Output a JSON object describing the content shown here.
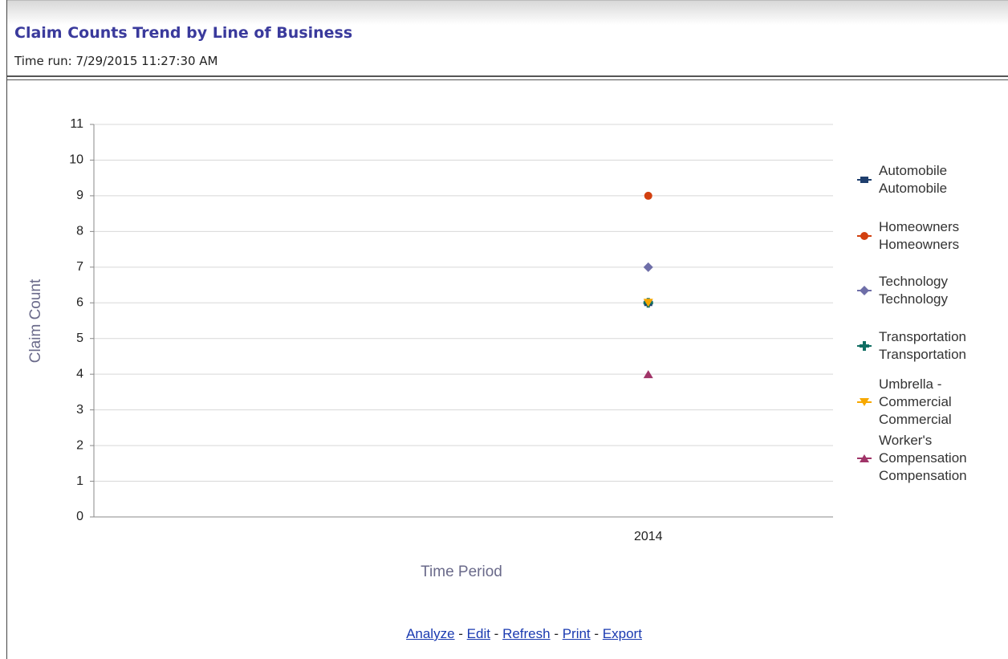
{
  "header": {
    "title": "Claim Counts Trend by Line of Business",
    "time_run": "Time run: 7/29/2015 11:27:30 AM"
  },
  "chart_data": {
    "type": "scatter",
    "y_label": "Claim Count",
    "x_label": "Time Period",
    "categories": [
      "2014"
    ],
    "series": [
      {
        "name": "Automobile Automobile",
        "color": "#1f3f6e",
        "marker": "square",
        "values": [
          6
        ]
      },
      {
        "name": "Homeowners Homeowners",
        "color": "#d2400f",
        "marker": "circle",
        "values": [
          9
        ]
      },
      {
        "name": "Technology Technology",
        "color": "#6e6ea8",
        "marker": "diamond",
        "values": [
          7
        ]
      },
      {
        "name": "Transportation Transportation",
        "color": "#116e63",
        "marker": "plus",
        "values": [
          6
        ]
      },
      {
        "name": "Umbrella - Commercial Commercial",
        "color": "#f7a800",
        "marker": "triangle-down",
        "values": [
          6
        ]
      },
      {
        "name": "Worker's Compensation Compensation",
        "color": "#a03468",
        "marker": "triangle-up",
        "values": [
          4
        ]
      }
    ],
    "ylim": [
      0,
      11
    ],
    "yticks": [
      0,
      1,
      2,
      3,
      4,
      5,
      6,
      7,
      8,
      9,
      10,
      11
    ],
    "grid": true,
    "legend": "right"
  },
  "links": [
    "Analyze",
    "Edit",
    "Refresh",
    "Print",
    "Export"
  ]
}
